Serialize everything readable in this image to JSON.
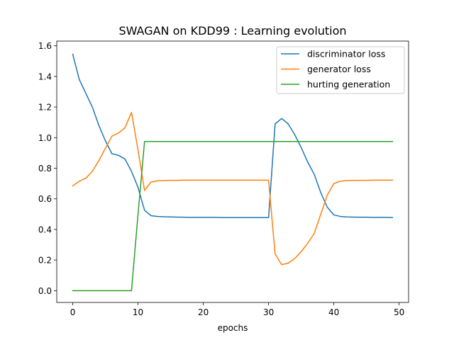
{
  "chart_data": {
    "type": "line",
    "title": "SWAGAN on KDD99 : Learning evolution",
    "xlabel": "epochs",
    "ylabel": "",
    "xlim": [
      -2.45,
      51.45
    ],
    "ylim": [
      -0.077,
      1.631
    ],
    "xticks": [
      0,
      10,
      20,
      30,
      40,
      50
    ],
    "yticks": [
      0.0,
      0.2,
      0.4,
      0.6,
      0.8,
      1.0,
      1.2,
      1.4,
      1.6
    ],
    "ytick_labels": [
      "0.0",
      "0.2",
      "0.4",
      "0.6",
      "0.8",
      "1.0",
      "1.2",
      "1.4",
      "1.6"
    ],
    "xtick_labels": [
      "0",
      "10",
      "20",
      "30",
      "40",
      "50"
    ],
    "grid": false,
    "legend_position": "top-right",
    "x": [
      0,
      1,
      2,
      3,
      4,
      5,
      6,
      7,
      8,
      9,
      10,
      11,
      12,
      13,
      14,
      15,
      16,
      17,
      18,
      19,
      20,
      21,
      22,
      23,
      24,
      25,
      26,
      27,
      28,
      29,
      30,
      31,
      32,
      33,
      34,
      35,
      36,
      37,
      38,
      39,
      40,
      41,
      42,
      43,
      44,
      45,
      46,
      47,
      48,
      49
    ],
    "series": [
      {
        "name": "discriminator loss",
        "color": "#1f77b4",
        "values": [
          1.545,
          1.38,
          1.29,
          1.2,
          1.08,
          0.98,
          0.895,
          0.885,
          0.86,
          0.78,
          0.675,
          0.525,
          0.49,
          0.485,
          0.483,
          0.482,
          0.481,
          0.48,
          0.479,
          0.479,
          0.479,
          0.479,
          0.479,
          0.478,
          0.478,
          0.478,
          0.478,
          0.478,
          0.478,
          0.478,
          0.478,
          1.09,
          1.125,
          1.09,
          1.02,
          0.935,
          0.84,
          0.76,
          0.64,
          0.545,
          0.495,
          0.485,
          0.482,
          0.481,
          0.48,
          0.48,
          0.479,
          0.479,
          0.479,
          0.478
        ]
      },
      {
        "name": "generator loss",
        "color": "#ff7f0e",
        "values": [
          0.685,
          0.715,
          0.735,
          0.78,
          0.85,
          0.93,
          1.01,
          1.03,
          1.065,
          1.165,
          0.92,
          0.655,
          0.71,
          0.718,
          0.72,
          0.721,
          0.721,
          0.722,
          0.722,
          0.722,
          0.722,
          0.722,
          0.722,
          0.722,
          0.722,
          0.722,
          0.722,
          0.722,
          0.722,
          0.722,
          0.722,
          0.24,
          0.17,
          0.18,
          0.21,
          0.255,
          0.31,
          0.375,
          0.5,
          0.625,
          0.7,
          0.715,
          0.72,
          0.72,
          0.721,
          0.721,
          0.722,
          0.722,
          0.722,
          0.722
        ]
      },
      {
        "name": "hurting generation",
        "color": "#2ca02c",
        "values": [
          0,
          0,
          0,
          0,
          0,
          0,
          0,
          0,
          0,
          0,
          0.5,
          0.975,
          0.975,
          0.975,
          0.975,
          0.975,
          0.975,
          0.975,
          0.975,
          0.975,
          0.975,
          0.975,
          0.975,
          0.975,
          0.975,
          0.975,
          0.975,
          0.975,
          0.975,
          0.975,
          0.975,
          0.975,
          0.975,
          0.975,
          0.975,
          0.975,
          0.975,
          0.975,
          0.975,
          0.975,
          0.975,
          0.975,
          0.975,
          0.975,
          0.975,
          0.975,
          0.975,
          0.975,
          0.975,
          0.975
        ]
      }
    ]
  }
}
